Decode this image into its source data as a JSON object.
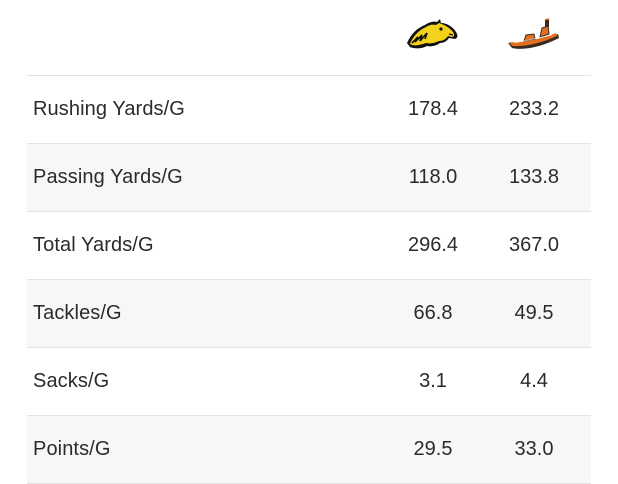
{
  "teams": [
    {
      "logo_icon": "mustang-head-logo-icon",
      "primary_color": "#f2d21b",
      "secondary_color": "#111111"
    },
    {
      "logo_icon": "boat-logo-icon",
      "primary_color": "#e0701f",
      "secondary_color": "#3a2a20"
    }
  ],
  "colors": {
    "row_alt_background": "#f7f7f7",
    "divider": "#e3e3e3",
    "text": "#2b2b2b"
  },
  "rows": [
    {
      "label": "Rushing Yards/G",
      "team_a": "178.4",
      "team_b": "233.2"
    },
    {
      "label": "Passing Yards/G",
      "team_a": "118.0",
      "team_b": "133.8"
    },
    {
      "label": "Total Yards/G",
      "team_a": "296.4",
      "team_b": "367.0"
    },
    {
      "label": "Tackles/G",
      "team_a": "66.8",
      "team_b": "49.5"
    },
    {
      "label": "Sacks/G",
      "team_a": "3.1",
      "team_b": "4.4"
    },
    {
      "label": "Points/G",
      "team_a": "29.5",
      "team_b": "33.0"
    }
  ]
}
